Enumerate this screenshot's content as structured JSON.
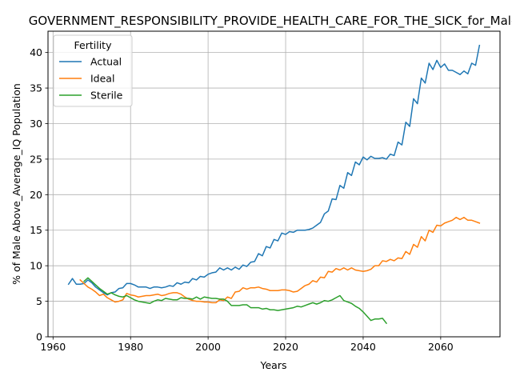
{
  "chart_data": {
    "type": "line",
    "title": "GOVERNMENT_RESPONSIBILITY_PROVIDE_HEALTH_CARE_FOR_THE_SICK_for_Male",
    "xlabel": "Years",
    "ylabel": "% of Male Above_Average_IQ Population",
    "xlim": [
      1958.7,
      2075.3
    ],
    "ylim": [
      0,
      43
    ],
    "xticks": [
      1960,
      1980,
      2000,
      2020,
      2040,
      2060
    ],
    "yticks": [
      0,
      5,
      10,
      15,
      20,
      25,
      30,
      35,
      40
    ],
    "grid": true,
    "legend": {
      "title": "Fertility",
      "placement": "top-left"
    },
    "series": [
      {
        "name": "Actual",
        "color": "#1f77b4",
        "x": [
          1964,
          1965,
          1966,
          1967,
          1968,
          1969,
          1970,
          1971,
          1972,
          1973,
          1974,
          1975,
          1976,
          1977,
          1978,
          1979,
          1980,
          1981,
          1982,
          1983,
          1984,
          1985,
          1986,
          1987,
          1988,
          1989,
          1990,
          1991,
          1992,
          1993,
          1994,
          1995,
          1996,
          1997,
          1998,
          1999,
          2000,
          2001,
          2002,
          2003,
          2004,
          2005,
          2006,
          2007,
          2008,
          2009,
          2010,
          2011,
          2012,
          2013,
          2014,
          2015,
          2016,
          2017,
          2018,
          2019,
          2020,
          2021,
          2022,
          2023,
          2024,
          2025,
          2026,
          2027,
          2028,
          2029,
          2030,
          2031,
          2032,
          2033,
          2034,
          2035,
          2036,
          2037,
          2038,
          2039,
          2040,
          2041,
          2042,
          2043,
          2044,
          2045,
          2046,
          2047,
          2048,
          2049,
          2050,
          2051,
          2052,
          2053,
          2054,
          2055,
          2056,
          2057,
          2058,
          2059,
          2060,
          2061,
          2062,
          2063,
          2064,
          2065,
          2066,
          2067,
          2068,
          2069,
          2070
        ],
        "values": [
          7.4,
          8.2,
          7.4,
          7.4,
          7.5,
          8.0,
          7.6,
          7.0,
          6.6,
          6.2,
          5.9,
          6.2,
          6.3,
          6.8,
          6.9,
          7.5,
          7.5,
          7.3,
          7.0,
          7.0,
          7.0,
          6.8,
          7.0,
          7.0,
          6.9,
          7.0,
          7.2,
          7.1,
          7.6,
          7.4,
          7.7,
          7.6,
          8.2,
          8.0,
          8.5,
          8.4,
          8.8,
          9.0,
          9.1,
          9.7,
          9.4,
          9.7,
          9.4,
          9.8,
          9.5,
          10.1,
          9.9,
          10.5,
          10.6,
          11.7,
          11.4,
          12.7,
          12.5,
          13.7,
          13.5,
          14.6,
          14.4,
          14.8,
          14.7,
          15.0,
          15.0,
          15.0,
          15.1,
          15.3,
          15.7,
          16.1,
          17.3,
          17.7,
          19.4,
          19.3,
          21.3,
          20.9,
          23.1,
          22.7,
          24.6,
          24.2,
          25.3,
          24.9,
          25.4,
          25.1,
          25.1,
          25.2,
          25.0,
          25.7,
          25.5,
          27.4,
          27.0,
          30.2,
          29.6,
          33.5,
          32.8,
          36.4,
          35.7,
          38.5,
          37.6,
          38.9,
          37.9,
          38.4,
          37.5,
          37.5,
          37.2,
          36.9,
          37.4,
          37.0,
          38.5,
          38.2,
          41.0
        ]
      },
      {
        "name": "Ideal",
        "color": "#ff7f0e",
        "x": [
          1967,
          1968,
          1969,
          1970,
          1971,
          1972,
          1973,
          1974,
          1975,
          1976,
          1977,
          1978,
          1979,
          1980,
          1981,
          1982,
          1983,
          1984,
          1985,
          1986,
          1987,
          1988,
          1989,
          1990,
          1991,
          1992,
          1993,
          1994,
          1995,
          1996,
          1997,
          1998,
          1999,
          2000,
          2001,
          2002,
          2003,
          2004,
          2005,
          2006,
          2007,
          2008,
          2009,
          2010,
          2011,
          2012,
          2013,
          2014,
          2015,
          2016,
          2017,
          2018,
          2019,
          2020,
          2021,
          2022,
          2023,
          2024,
          2025,
          2026,
          2027,
          2028,
          2029,
          2030,
          2031,
          2032,
          2033,
          2034,
          2035,
          2036,
          2037,
          2038,
          2039,
          2040,
          2041,
          2042,
          2043,
          2044,
          2045,
          2046,
          2047,
          2048,
          2049,
          2050,
          2051,
          2052,
          2053,
          2054,
          2055,
          2056,
          2057,
          2058,
          2059,
          2060,
          2061,
          2062,
          2063,
          2064,
          2065,
          2066,
          2067,
          2068,
          2069,
          2070
        ],
        "values": [
          8.0,
          7.5,
          7.0,
          6.7,
          6.3,
          5.8,
          6.0,
          5.5,
          5.2,
          4.9,
          5.0,
          5.2,
          6.1,
          5.9,
          5.8,
          5.6,
          5.7,
          5.8,
          5.8,
          5.9,
          6.0,
          5.8,
          5.9,
          6.1,
          6.2,
          6.2,
          6.0,
          5.6,
          5.3,
          5.1,
          5.0,
          5.0,
          4.9,
          4.9,
          4.8,
          4.8,
          5.2,
          5.1,
          5.6,
          5.4,
          6.3,
          6.4,
          6.9,
          6.7,
          6.9,
          6.9,
          7.0,
          6.8,
          6.7,
          6.5,
          6.5,
          6.5,
          6.6,
          6.6,
          6.5,
          6.3,
          6.4,
          6.8,
          7.2,
          7.4,
          7.9,
          7.7,
          8.4,
          8.3,
          9.2,
          9.1,
          9.6,
          9.4,
          9.7,
          9.4,
          9.7,
          9.4,
          9.3,
          9.2,
          9.3,
          9.5,
          10.0,
          10.0,
          10.7,
          10.6,
          10.9,
          10.7,
          11.1,
          11.0,
          12.0,
          11.6,
          13.0,
          12.6,
          14.1,
          13.5,
          15.0,
          14.7,
          15.7,
          15.6,
          16.0,
          16.2,
          16.4,
          16.8,
          16.5,
          16.8,
          16.4,
          16.4,
          16.2,
          16.0
        ]
      },
      {
        "name": "Sterile",
        "color": "#2ca02c",
        "x": [
          1968,
          1969,
          1970,
          1971,
          1972,
          1973,
          1974,
          1975,
          1976,
          1977,
          1978,
          1979,
          1980,
          1981,
          1982,
          1983,
          1984,
          1985,
          1986,
          1987,
          1988,
          1989,
          1990,
          1991,
          1992,
          1993,
          1994,
          1995,
          1996,
          1997,
          1998,
          1999,
          2000,
          2001,
          2002,
          2003,
          2004,
          2005,
          2006,
          2007,
          2008,
          2009,
          2010,
          2011,
          2012,
          2013,
          2014,
          2015,
          2016,
          2017,
          2018,
          2019,
          2020,
          2021,
          2022,
          2023,
          2024,
          2025,
          2026,
          2027,
          2028,
          2029,
          2030,
          2031,
          2032,
          2033,
          2034,
          2035,
          2036,
          2037,
          2038,
          2039,
          2040,
          2041,
          2042,
          2043,
          2044,
          2045,
          2046
        ],
        "values": [
          7.8,
          8.3,
          7.8,
          7.3,
          6.8,
          6.4,
          6.0,
          6.2,
          5.9,
          5.7,
          5.6,
          5.8,
          5.5,
          5.2,
          5.0,
          4.9,
          4.8,
          4.7,
          5.0,
          5.2,
          5.1,
          5.4,
          5.3,
          5.2,
          5.2,
          5.5,
          5.4,
          5.4,
          5.3,
          5.6,
          5.3,
          5.6,
          5.5,
          5.4,
          5.4,
          5.3,
          5.3,
          5.0,
          4.4,
          4.4,
          4.4,
          4.5,
          4.5,
          4.1,
          4.1,
          4.1,
          3.9,
          4.0,
          3.8,
          3.8,
          3.7,
          3.8,
          3.9,
          4.0,
          4.1,
          4.3,
          4.2,
          4.4,
          4.6,
          4.8,
          4.6,
          4.8,
          5.1,
          5.0,
          5.2,
          5.5,
          5.8,
          5.1,
          4.9,
          4.7,
          4.3,
          4.0,
          3.5,
          2.9,
          2.3,
          2.5,
          2.5,
          2.6,
          1.9
        ]
      }
    ]
  }
}
